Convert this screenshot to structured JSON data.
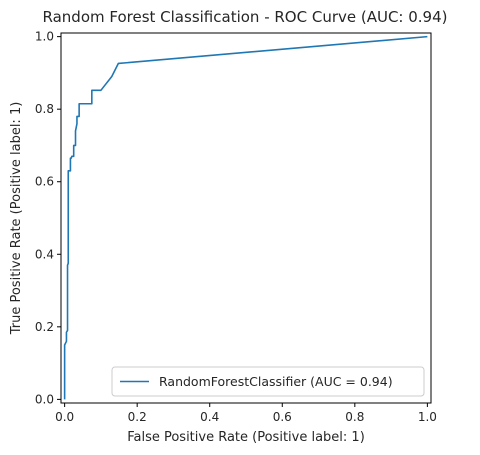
{
  "chart_data": {
    "type": "line",
    "title": "Random Forest Classification - ROC Curve (AUC: 0.94)",
    "xlabel": "False Positive Rate (Positive label: 1)",
    "ylabel": "True Positive Rate (Positive label: 1)",
    "xlim": [
      -0.01,
      1.01
    ],
    "ylim": [
      -0.01,
      1.01
    ],
    "x_ticks": [
      "0.0",
      "0.2",
      "0.4",
      "0.6",
      "0.8",
      "1.0"
    ],
    "y_ticks": [
      "0.0",
      "0.2",
      "0.4",
      "0.6",
      "0.8",
      "1.0"
    ],
    "x_tick_values": [
      0.0,
      0.2,
      0.4,
      0.6,
      0.8,
      1.0
    ],
    "y_tick_values": [
      0.0,
      0.2,
      0.4,
      0.6,
      0.8,
      1.0
    ],
    "grid": false,
    "legend_position": "lower-right",
    "series": [
      {
        "name": "RandomForestClassifier (AUC = 0.94)",
        "color": "#1f77b4",
        "x": [
          0.0,
          0.0,
          0.005,
          0.005,
          0.008,
          0.008,
          0.01,
          0.01,
          0.012,
          0.012,
          0.016,
          0.016,
          0.018,
          0.02,
          0.025,
          0.025,
          0.03,
          0.03,
          0.032,
          0.034,
          0.034,
          0.04,
          0.04,
          0.045,
          0.05,
          0.05,
          0.075,
          0.075,
          0.1,
          0.13,
          0.148,
          1.0
        ],
        "y": [
          0.0,
          0.15,
          0.16,
          0.185,
          0.19,
          0.37,
          0.375,
          0.63,
          0.63,
          0.63,
          0.63,
          0.665,
          0.665,
          0.67,
          0.67,
          0.7,
          0.7,
          0.74,
          0.75,
          0.76,
          0.78,
          0.78,
          0.815,
          0.815,
          0.815,
          0.815,
          0.815,
          0.852,
          0.852,
          0.89,
          0.926,
          1.0
        ]
      }
    ]
  }
}
